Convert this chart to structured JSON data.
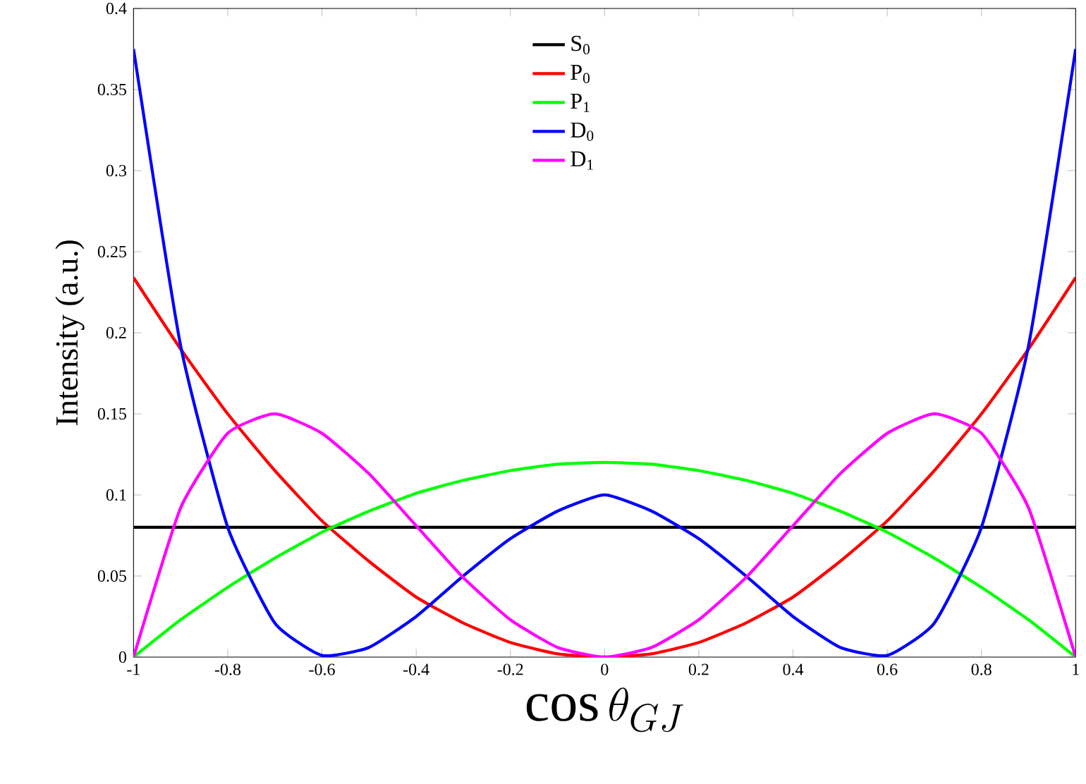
{
  "chart_data": {
    "type": "line",
    "xlabel": "\\cos\\theta_{GJ}",
    "ylabel": "Intensity (a.u.)",
    "x": [
      -1,
      -0.9,
      -0.8,
      -0.7,
      -0.6,
      -0.5,
      -0.4,
      -0.3,
      -0.2,
      -0.1,
      0,
      0.1,
      0.2,
      0.3,
      0.4,
      0.5,
      0.6,
      0.7,
      0.8,
      0.9,
      1
    ],
    "series": [
      {
        "name": "S$_{0}$",
        "color": "#000000",
        "values": [
          0.08,
          0.08,
          0.08,
          0.08,
          0.08,
          0.08,
          0.08,
          0.08,
          0.08,
          0.08,
          0.08,
          0.08,
          0.08,
          0.08,
          0.08,
          0.08,
          0.08,
          0.08,
          0.08,
          0.08,
          0.08
        ]
      },
      {
        "name": "P$_{0}$",
        "color": "#ff0000",
        "values": [
          0.234,
          0.19,
          0.15,
          0.115,
          0.084,
          0.059,
          0.037,
          0.021,
          0.009,
          0.002,
          0,
          0.002,
          0.009,
          0.021,
          0.037,
          0.059,
          0.084,
          0.115,
          0.15,
          0.19,
          0.234
        ]
      },
      {
        "name": "P$_{1}$",
        "color": "#00ff00",
        "values": [
          0,
          0.023,
          0.043,
          0.061,
          0.077,
          0.09,
          0.101,
          0.109,
          0.115,
          0.119,
          0.12,
          0.119,
          0.115,
          0.109,
          0.101,
          0.09,
          0.077,
          0.061,
          0.043,
          0.023,
          0
        ]
      },
      {
        "name": "D$_{0}$",
        "color": "#0000ff",
        "values": [
          0.375,
          0.192,
          0.08,
          0.021,
          0.001,
          0.006,
          0.025,
          0.05,
          0.073,
          0.09,
          0.1,
          0.09,
          0.073,
          0.05,
          0.025,
          0.006,
          0.001,
          0.021,
          0.08,
          0.192,
          0.375
        ]
      },
      {
        "name": "D$_{1}$",
        "color": "#ff00ff",
        "values": [
          0,
          0.092,
          0.138,
          0.15,
          0.138,
          0.113,
          0.081,
          0.049,
          0.023,
          0.006,
          0,
          0.006,
          0.023,
          0.049,
          0.081,
          0.113,
          0.138,
          0.15,
          0.138,
          0.092,
          0
        ]
      }
    ],
    "xlim": [
      -1,
      1
    ],
    "ylim": [
      0,
      0.4
    ],
    "xticks": [
      -1,
      -0.8,
      -0.6,
      -0.4,
      -0.2,
      0,
      0.2,
      0.4,
      0.6,
      0.8,
      1
    ],
    "yticks": [
      0,
      0.05,
      0.1,
      0.15,
      0.2,
      0.25,
      0.3,
      0.35,
      0.4
    ],
    "legend": "top left",
    "grid": false,
    "marker": "none",
    "line_style": "solid"
  }
}
